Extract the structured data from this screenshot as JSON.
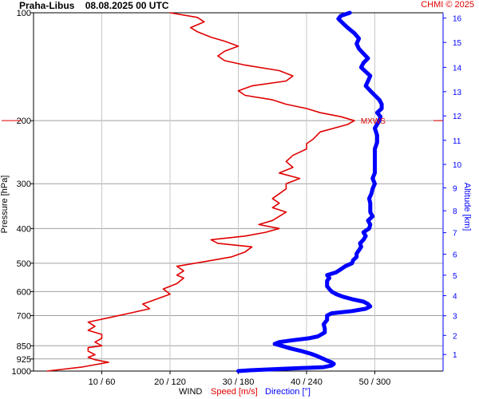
{
  "header": {
    "station": "Praha-Libus",
    "datetime": "08.08.2025 00 UTC",
    "credit": "CHMI © 2025"
  },
  "legend": {
    "wind": "WIND",
    "speed": "Speed [m/s]",
    "direction": "Direction [°]"
  },
  "chart_data": {
    "type": "line",
    "title": "Praha-Libus 08.08.2025 00 UTC",
    "y_left_label": "Pressure [hPa]",
    "y_left_scale": "log",
    "y_left_range": [
      100,
      1000
    ],
    "y_left_ticks": [
      "100",
      "200",
      "300",
      "400",
      "500",
      "600",
      "700",
      "850",
      "925",
      "1000"
    ],
    "y_left_tick_values": [
      100,
      200,
      300,
      400,
      500,
      600,
      700,
      850,
      925,
      1000
    ],
    "y_right_label": "Altitude [km]",
    "y_right_ticks": [
      "1",
      "2",
      "3",
      "4",
      "5",
      "6",
      "7",
      "8",
      "9",
      "10",
      "11",
      "12",
      "13",
      "14",
      "15",
      "16"
    ],
    "y_right_tick_pressures": [
      899,
      795,
      701,
      616,
      540,
      472,
      411,
      357,
      308,
      265,
      227,
      194,
      166,
      142,
      121,
      103.5
    ],
    "x_ticks": [
      "10 / 60",
      "20 / 120",
      "30 / 180",
      "40 / 240",
      "50 / 300"
    ],
    "x_tick_speed": [
      10,
      20,
      30,
      40,
      50
    ],
    "x_tick_direction": [
      60,
      120,
      180,
      240,
      300
    ],
    "x_range_speed": [
      0,
      60
    ],
    "grid": true,
    "annotations": [
      {
        "text": "MXWS",
        "pressure": 200,
        "speed": 47
      }
    ],
    "series": [
      {
        "name": "Speed [m/s]",
        "color": "#e00000",
        "axis": "speed",
        "points": [
          [
            1000,
            2
          ],
          [
            990,
            4
          ],
          [
            975,
            7
          ],
          [
            960,
            9
          ],
          [
            945,
            11
          ],
          [
            930,
            9
          ],
          [
            915,
            8
          ],
          [
            900,
            9
          ],
          [
            880,
            8
          ],
          [
            860,
            8
          ],
          [
            850,
            10
          ],
          [
            830,
            9
          ],
          [
            810,
            10
          ],
          [
            790,
            10
          ],
          [
            770,
            8
          ],
          [
            750,
            9
          ],
          [
            730,
            8
          ],
          [
            710,
            11
          ],
          [
            690,
            14
          ],
          [
            670,
            17
          ],
          [
            650,
            16
          ],
          [
            630,
            18
          ],
          [
            610,
            20
          ],
          [
            590,
            19
          ],
          [
            570,
            21
          ],
          [
            550,
            22
          ],
          [
            540,
            21
          ],
          [
            525,
            22
          ],
          [
            510,
            21
          ],
          [
            495,
            25
          ],
          [
            480,
            29
          ],
          [
            465,
            31
          ],
          [
            450,
            32
          ],
          [
            440,
            27
          ],
          [
            430,
            26
          ],
          [
            420,
            31
          ],
          [
            410,
            34
          ],
          [
            400,
            36
          ],
          [
            390,
            33
          ],
          [
            380,
            35
          ],
          [
            370,
            36
          ],
          [
            360,
            37
          ],
          [
            350,
            35
          ],
          [
            340,
            36
          ],
          [
            330,
            35
          ],
          [
            320,
            36
          ],
          [
            310,
            37
          ],
          [
            300,
            37
          ],
          [
            290,
            39
          ],
          [
            280,
            36
          ],
          [
            270,
            38
          ],
          [
            260,
            37
          ],
          [
            250,
            38
          ],
          [
            240,
            40
          ],
          [
            232,
            40
          ],
          [
            225,
            41
          ],
          [
            215,
            42
          ],
          [
            205,
            46
          ],
          [
            200,
            47
          ],
          [
            195,
            45
          ],
          [
            190,
            42
          ],
          [
            185,
            40
          ],
          [
            180,
            37
          ],
          [
            175,
            35
          ],
          [
            170,
            31
          ],
          [
            165,
            30
          ],
          [
            160,
            32
          ],
          [
            155,
            37
          ],
          [
            150,
            38
          ],
          [
            145,
            36
          ],
          [
            140,
            31
          ],
          [
            136,
            28
          ],
          [
            132,
            27
          ],
          [
            128,
            28
          ],
          [
            124,
            30
          ],
          [
            120,
            28
          ],
          [
            117,
            26
          ],
          [
            113,
            24
          ],
          [
            110,
            23
          ],
          [
            106,
            25
          ],
          [
            103,
            24
          ],
          [
            100,
            20
          ]
        ]
      },
      {
        "name": "Direction [°]",
        "color": "#0000ff",
        "axis": "direction",
        "points": [
          [
            1000,
            180
          ],
          [
            995,
            190
          ],
          [
            985,
            220
          ],
          [
            975,
            255
          ],
          [
            965,
            262
          ],
          [
            955,
            264
          ],
          [
            945,
            262
          ],
          [
            935,
            258
          ],
          [
            925,
            255
          ],
          [
            910,
            250
          ],
          [
            895,
            244
          ],
          [
            880,
            236
          ],
          [
            865,
            226
          ],
          [
            850,
            218
          ],
          [
            840,
            212
          ],
          [
            830,
            216
          ],
          [
            820,
            228
          ],
          [
            810,
            242
          ],
          [
            800,
            250
          ],
          [
            780,
            256
          ],
          [
            760,
            256
          ],
          [
            740,
            255
          ],
          [
            720,
            258
          ],
          [
            700,
            258
          ],
          [
            690,
            262
          ],
          [
            680,
            280
          ],
          [
            670,
            292
          ],
          [
            660,
            296
          ],
          [
            650,
            294
          ],
          [
            640,
            290
          ],
          [
            630,
            280
          ],
          [
            620,
            272
          ],
          [
            610,
            266
          ],
          [
            600,
            262
          ],
          [
            590,
            260
          ],
          [
            580,
            258
          ],
          [
            570,
            258
          ],
          [
            560,
            258
          ],
          [
            550,
            260
          ],
          [
            540,
            258
          ],
          [
            530,
            266
          ],
          [
            520,
            270
          ],
          [
            510,
            274
          ],
          [
            500,
            280
          ],
          [
            490,
            281
          ],
          [
            480,
            284
          ],
          [
            470,
            284
          ],
          [
            460,
            286
          ],
          [
            450,
            288
          ],
          [
            440,
            287
          ],
          [
            430,
            290
          ],
          [
            420,
            292
          ],
          [
            410,
            290
          ],
          [
            400,
            295
          ],
          [
            390,
            296
          ],
          [
            380,
            294
          ],
          [
            370,
            298
          ],
          [
            360,
            296
          ],
          [
            350,
            296
          ],
          [
            340,
            296
          ],
          [
            330,
            295
          ],
          [
            320,
            297
          ],
          [
            310,
            298
          ],
          [
            300,
            300
          ],
          [
            290,
            298
          ],
          [
            280,
            300
          ],
          [
            270,
            300
          ],
          [
            260,
            300
          ],
          [
            250,
            300
          ],
          [
            240,
            300
          ],
          [
            230,
            302
          ],
          [
            220,
            302
          ],
          [
            210,
            300
          ],
          [
            200,
            304
          ],
          [
            195,
            305
          ],
          [
            190,
            302
          ],
          [
            185,
            306
          ],
          [
            180,
            306
          ],
          [
            175,
            304
          ],
          [
            170,
            300
          ],
          [
            165,
            296
          ],
          [
            160,
            292
          ],
          [
            155,
            294
          ],
          [
            150,
            296
          ],
          [
            146,
            292
          ],
          [
            142,
            288
          ],
          [
            138,
            290
          ],
          [
            134,
            294
          ],
          [
            130,
            290
          ],
          [
            126,
            286
          ],
          [
            122,
            284
          ],
          [
            118,
            286
          ],
          [
            114,
            282
          ],
          [
            110,
            276
          ],
          [
            107,
            272
          ],
          [
            104,
            268
          ],
          [
            102,
            270
          ],
          [
            100,
            278
          ]
        ]
      }
    ]
  }
}
